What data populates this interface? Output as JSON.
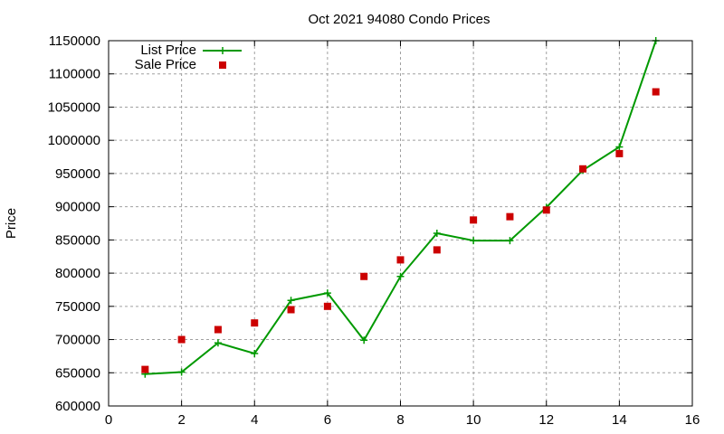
{
  "chart_data": {
    "type": "line",
    "title": "Oct 2021 94080 Condo Prices",
    "xlabel": "",
    "ylabel": "Price",
    "xlim": [
      0,
      16
    ],
    "ylim": [
      600000,
      1150000
    ],
    "x_ticks": [
      0,
      2,
      4,
      6,
      8,
      10,
      12,
      14,
      16
    ],
    "y_ticks": [
      600000,
      650000,
      700000,
      750000,
      800000,
      850000,
      900000,
      950000,
      1000000,
      1050000,
      1100000,
      1150000
    ],
    "grid": true,
    "legend_position": "top-left",
    "series": [
      {
        "name": "List Price",
        "style": "line-with-plus-markers",
        "color": "#009900",
        "x": [
          1,
          2,
          3,
          4,
          5,
          6,
          7,
          8,
          9,
          10,
          11,
          12,
          13,
          14,
          15
        ],
        "values": [
          648000,
          651000,
          695000,
          679000,
          759000,
          770000,
          699000,
          795000,
          860000,
          849000,
          849000,
          899000,
          955000,
          990000,
          1150000
        ]
      },
      {
        "name": "Sale Price",
        "style": "square-markers",
        "color": "#cc0000",
        "x": [
          1,
          2,
          3,
          4,
          5,
          6,
          7,
          8,
          9,
          10,
          11,
          12,
          13,
          14,
          15
        ],
        "values": [
          655000,
          700000,
          715000,
          725000,
          745000,
          750000,
          795000,
          820000,
          835000,
          880000,
          885000,
          895000,
          957000,
          980000,
          1073000
        ]
      }
    ]
  }
}
